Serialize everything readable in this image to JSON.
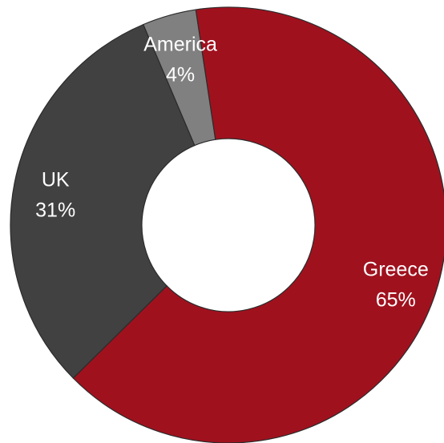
{
  "chart_data": {
    "type": "pie",
    "variant": "donut",
    "start_angle_deg": -23,
    "direction": "clockwise",
    "legend": "none",
    "slices": [
      {
        "label": "America",
        "value": 4,
        "value_label": "4%",
        "color": "#808080"
      },
      {
        "label": "Greece",
        "value": 65,
        "value_label": "65%",
        "color": "#a0111e"
      },
      {
        "label": "UK",
        "value": 31,
        "value_label": "31%",
        "color": "#414142"
      }
    ]
  }
}
